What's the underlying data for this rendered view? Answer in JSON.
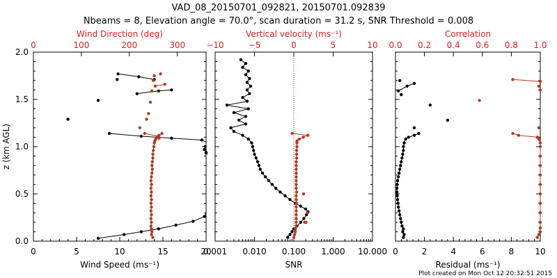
{
  "title_line1": "VAD_08_20150701_092821, 20150701.092839",
  "title_line2": "Nbeams = 8, Elevation angle = 70.0°, scan duration = 31.2 s, SNR Threshold = 0.008",
  "footer": "Plot created on Mon Oct 12 20:32:51 2015",
  "colors": {
    "black": "#000000",
    "red": "#d42020",
    "brown": "#b03a22"
  },
  "chart_data": [
    {
      "type": "scatter",
      "ylabel": "z (km AGL)",
      "ylim": [
        0,
        2.0
      ],
      "yticks": [
        "0.0",
        "0.5",
        "1.0",
        "1.5",
        "2.0"
      ],
      "xlabel": "Wind Speed (ms⁻¹)",
      "xlim": [
        0,
        20
      ],
      "xticks": [
        "0",
        "5",
        "10",
        "15",
        "20"
      ],
      "top_label": "Wind Direction (deg)",
      "top_xlim": [
        0,
        360
      ],
      "top_xticks": [
        "0",
        "100",
        "200",
        "300"
      ],
      "series": [
        {
          "color": "black",
          "axis": "bottom",
          "segments": [
            [
              [
                7.5,
                0.03
              ],
              [
                10.5,
                0.07
              ],
              [
                12.5,
                0.1
              ],
              [
                14.5,
                0.13
              ],
              [
                16.5,
                0.17
              ],
              [
                18.5,
                0.21
              ],
              [
                19.8,
                0.26
              ],
              [
                20.5,
                0.3
              ]
            ],
            [
              [
                20.5,
                0.88
              ],
              [
                20,
                0.93
              ]
            ],
            [
              [
                8.8,
                1.14
              ],
              [
                12.5,
                1.11
              ],
              [
                16,
                1.09
              ],
              [
                19.5,
                1.07
              ],
              [
                20.5,
                1.05
              ]
            ],
            [
              [
                12,
                1.56
              ],
              [
                14.5,
                1.59
              ],
              [
                16,
                1.6
              ]
            ],
            [
              [
                9.8,
                1.77
              ],
              [
                12.2,
                1.74
              ],
              [
                14,
                1.71
              ]
            ]
          ],
          "points": [
            [
              7.5,
              1.49
            ],
            [
              4,
              1.29
            ],
            [
              9.7,
              1.71
            ],
            [
              19.9,
              1.0
            ],
            [
              19.8,
              0.97
            ],
            [
              20,
              0.94
            ]
          ]
        },
        {
          "color": "brown",
          "axis": "top",
          "profile": [
            [
              0.04,
              249
            ],
            [
              0.07,
              246
            ],
            [
              0.1,
              247
            ],
            [
              0.13,
              246
            ],
            [
              0.16,
              245
            ],
            [
              0.2,
              246
            ],
            [
              0.24,
              245
            ],
            [
              0.28,
              246
            ],
            [
              0.32,
              245
            ],
            [
              0.36,
              246
            ],
            [
              0.4,
              245
            ],
            [
              0.44,
              246
            ],
            [
              0.48,
              245
            ],
            [
              0.52,
              246
            ],
            [
              0.56,
              245
            ],
            [
              0.6,
              246
            ],
            [
              0.64,
              245
            ],
            [
              0.68,
              246
            ],
            [
              0.72,
              247
            ],
            [
              0.76,
              248
            ],
            [
              0.8,
              247
            ],
            [
              0.84,
              248
            ],
            [
              0.88,
              249
            ],
            [
              0.92,
              249
            ],
            [
              0.96,
              250
            ],
            [
              1.0,
              251
            ],
            [
              1.04,
              252
            ],
            [
              1.06,
              253
            ],
            [
              1.08,
              255
            ],
            [
              1.1,
              258
            ],
            [
              1.12,
              262
            ],
            [
              1.14,
              268
            ]
          ],
          "segments": [
            [
              [
                232,
                1.14
              ],
              [
                260,
                1.11
              ],
              [
                262,
                1.09
              ]
            ],
            [
              [
                254,
                1.64
              ],
              [
                274,
                1.66
              ]
            ]
          ],
          "points": [
            [
              222,
              1.2
            ],
            [
              236,
              1.29
            ],
            [
              240,
              1.35
            ],
            [
              244,
              1.47
            ],
            [
              247,
              1.59
            ],
            [
              250,
              1.7
            ],
            [
              252,
              1.75
            ],
            [
              265,
              1.77
            ]
          ]
        }
      ]
    },
    {
      "type": "line",
      "xlabel": "SNR",
      "xlim": [
        0.001,
        10
      ],
      "xscale": "log",
      "xticks": [
        "0.001",
        "0.010",
        "0.100",
        "1.000",
        "10.000"
      ],
      "top_label": "Vertical velocity (ms⁻¹)",
      "top_xlim": [
        -10,
        10
      ],
      "top_xticks": [
        "−10",
        "−5",
        "0",
        "5",
        "10"
      ],
      "zero_line_top": 0,
      "series": [
        {
          "color": "black",
          "axis": "bottom",
          "profile": [
            [
              0.04,
              0.07
            ],
            [
              0.07,
              0.08
            ],
            [
              0.1,
              0.09
            ],
            [
              0.13,
              0.1
            ],
            [
              0.16,
              0.12
            ],
            [
              0.2,
              0.15
            ],
            [
              0.24,
              0.18
            ],
            [
              0.28,
              0.21
            ],
            [
              0.31,
              0.23
            ],
            [
              0.34,
              0.2
            ],
            [
              0.37,
              0.15
            ],
            [
              0.4,
              0.11
            ],
            [
              0.44,
              0.08
            ],
            [
              0.48,
              0.06
            ],
            [
              0.52,
              0.045
            ],
            [
              0.56,
              0.035
            ],
            [
              0.6,
              0.028
            ],
            [
              0.64,
              0.023
            ],
            [
              0.68,
              0.019
            ],
            [
              0.72,
              0.016
            ],
            [
              0.76,
              0.014
            ],
            [
              0.8,
              0.013
            ],
            [
              0.84,
              0.012
            ],
            [
              0.88,
              0.011
            ],
            [
              0.92,
              0.01
            ],
            [
              0.96,
              0.0095
            ],
            [
              1.0,
              0.009
            ],
            [
              1.04,
              0.0085
            ],
            [
              1.08,
              0.007
            ],
            [
              1.12,
              0.005
            ],
            [
              1.16,
              0.003
            ],
            [
              1.2,
              0.0025
            ],
            [
              1.24,
              0.006
            ],
            [
              1.28,
              0.004
            ],
            [
              1.32,
              0.006
            ],
            [
              1.36,
              0.003
            ],
            [
              1.4,
              0.007
            ],
            [
              1.44,
              0.002
            ],
            [
              1.48,
              0.0065
            ],
            [
              1.52,
              0.005
            ],
            [
              1.56,
              0.0075
            ],
            [
              1.6,
              0.0065
            ],
            [
              1.64,
              0.008
            ],
            [
              1.68,
              0.0065
            ],
            [
              1.72,
              0.0075
            ],
            [
              1.76,
              0.006
            ],
            [
              1.8,
              0.007
            ],
            [
              1.84,
              0.005
            ],
            [
              1.88,
              0.006
            ],
            [
              1.92,
              0.0045
            ]
          ]
        },
        {
          "color": "brown",
          "axis": "top",
          "profile": [
            [
              0.04,
              0
            ],
            [
              0.07,
              0.1
            ],
            [
              0.1,
              0.2
            ],
            [
              0.13,
              0.2
            ],
            [
              0.16,
              0.3
            ],
            [
              0.2,
              0.3
            ],
            [
              0.24,
              0.3
            ],
            [
              0.28,
              0.3
            ],
            [
              0.32,
              0.3
            ],
            [
              0.36,
              0.3
            ],
            [
              0.4,
              0.35
            ],
            [
              0.44,
              0.3
            ],
            [
              0.48,
              0.3
            ],
            [
              0.52,
              0.35
            ],
            [
              0.56,
              0.3
            ],
            [
              0.6,
              0.3
            ],
            [
              0.64,
              0.3
            ],
            [
              0.68,
              0.3
            ],
            [
              0.72,
              0.3
            ],
            [
              0.76,
              0.3
            ],
            [
              0.8,
              0.3
            ],
            [
              0.84,
              0.3
            ],
            [
              0.88,
              0.35
            ],
            [
              0.92,
              0.35
            ],
            [
              0.96,
              0.35
            ],
            [
              1.0,
              0.4
            ],
            [
              1.04,
              0.4
            ],
            [
              1.06,
              0.4
            ],
            [
              1.08,
              0.7
            ],
            [
              1.1,
              1.2
            ],
            [
              1.12,
              1.8
            ],
            [
              1.14,
              -0.2
            ]
          ],
          "points": [
            [
              1.25,
              0.5
            ],
            [
              1.37,
              0.2
            ],
            [
              1.54,
              0.2
            ],
            [
              1.72,
              0.3
            ]
          ]
        }
      ]
    },
    {
      "type": "line",
      "xlabel": "Residual (ms⁻¹)",
      "xlim": [
        0,
        10
      ],
      "xticks": [
        "0",
        "2",
        "4",
        "6",
        "8",
        "10"
      ],
      "top_label": "Correlation",
      "top_xlim": [
        0,
        1.0
      ],
      "top_xticks": [
        "0.0",
        "0.2",
        "0.4",
        "0.6",
        "0.8",
        "1.0"
      ],
      "series": [
        {
          "color": "black",
          "axis": "bottom",
          "profile": [
            [
              0.04,
              0.55
            ],
            [
              0.07,
              0.6
            ],
            [
              0.1,
              0.5
            ],
            [
              0.13,
              0.55
            ],
            [
              0.16,
              0.45
            ],
            [
              0.2,
              0.4
            ],
            [
              0.24,
              0.35
            ],
            [
              0.28,
              0.3
            ],
            [
              0.32,
              0.25
            ],
            [
              0.36,
              0.2
            ],
            [
              0.4,
              0.18
            ],
            [
              0.44,
              0.15
            ],
            [
              0.48,
              0.12
            ],
            [
              0.52,
              0.1
            ],
            [
              0.56,
              0.1
            ],
            [
              0.6,
              0.12
            ],
            [
              0.64,
              0.15
            ],
            [
              0.68,
              0.2
            ],
            [
              0.72,
              0.25
            ],
            [
              0.76,
              0.3
            ],
            [
              0.8,
              0.35
            ],
            [
              0.84,
              0.4
            ],
            [
              0.88,
              0.45
            ],
            [
              0.92,
              0.5
            ],
            [
              0.96,
              0.55
            ],
            [
              1.0,
              0.55
            ],
            [
              1.04,
              0.6
            ],
            [
              1.08,
              0.7
            ],
            [
              1.1,
              0.9
            ],
            [
              1.12,
              1.3
            ],
            [
              1.14,
              1.6
            ]
          ],
          "segments": [
            [
              [
                0.2,
                1.59
              ],
              [
                0.8,
                1.64
              ],
              [
                1.3,
                1.67
              ]
            ]
          ],
          "points": [
            [
              0.3,
              1.7
            ],
            [
              0.4,
              1.55
            ],
            [
              1.3,
              1.2
            ],
            [
              2.4,
              1.44
            ],
            [
              3.6,
              1.28
            ]
          ]
        },
        {
          "color": "brown",
          "axis": "top",
          "profile": [
            [
              0.04,
              0.98
            ],
            [
              0.07,
              0.99
            ],
            [
              0.1,
              1.0
            ],
            [
              0.14,
              1.0
            ],
            [
              0.2,
              1.0
            ],
            [
              0.3,
              1.0
            ],
            [
              0.4,
              1.0
            ],
            [
              0.5,
              1.0
            ],
            [
              0.6,
              1.0
            ],
            [
              0.7,
              1.0
            ],
            [
              0.8,
              1.0
            ],
            [
              0.9,
              1.0
            ],
            [
              1.0,
              1.0
            ],
            [
              1.04,
              1.0
            ],
            [
              1.08,
              0.99
            ],
            [
              1.1,
              0.98
            ],
            [
              1.12,
              0.85
            ],
            [
              1.14,
              0.81
            ]
          ],
          "segments": [
            [
              [
                0.81,
                1.71
              ],
              [
                1.0,
                1.69
              ]
            ]
          ],
          "points": [
            [
              0.58,
              1.49
            ],
            [
              0.99,
              1.2
            ],
            [
              1.0,
              1.6
            ],
            [
              0.99,
              1.64
            ]
          ]
        }
      ]
    }
  ]
}
